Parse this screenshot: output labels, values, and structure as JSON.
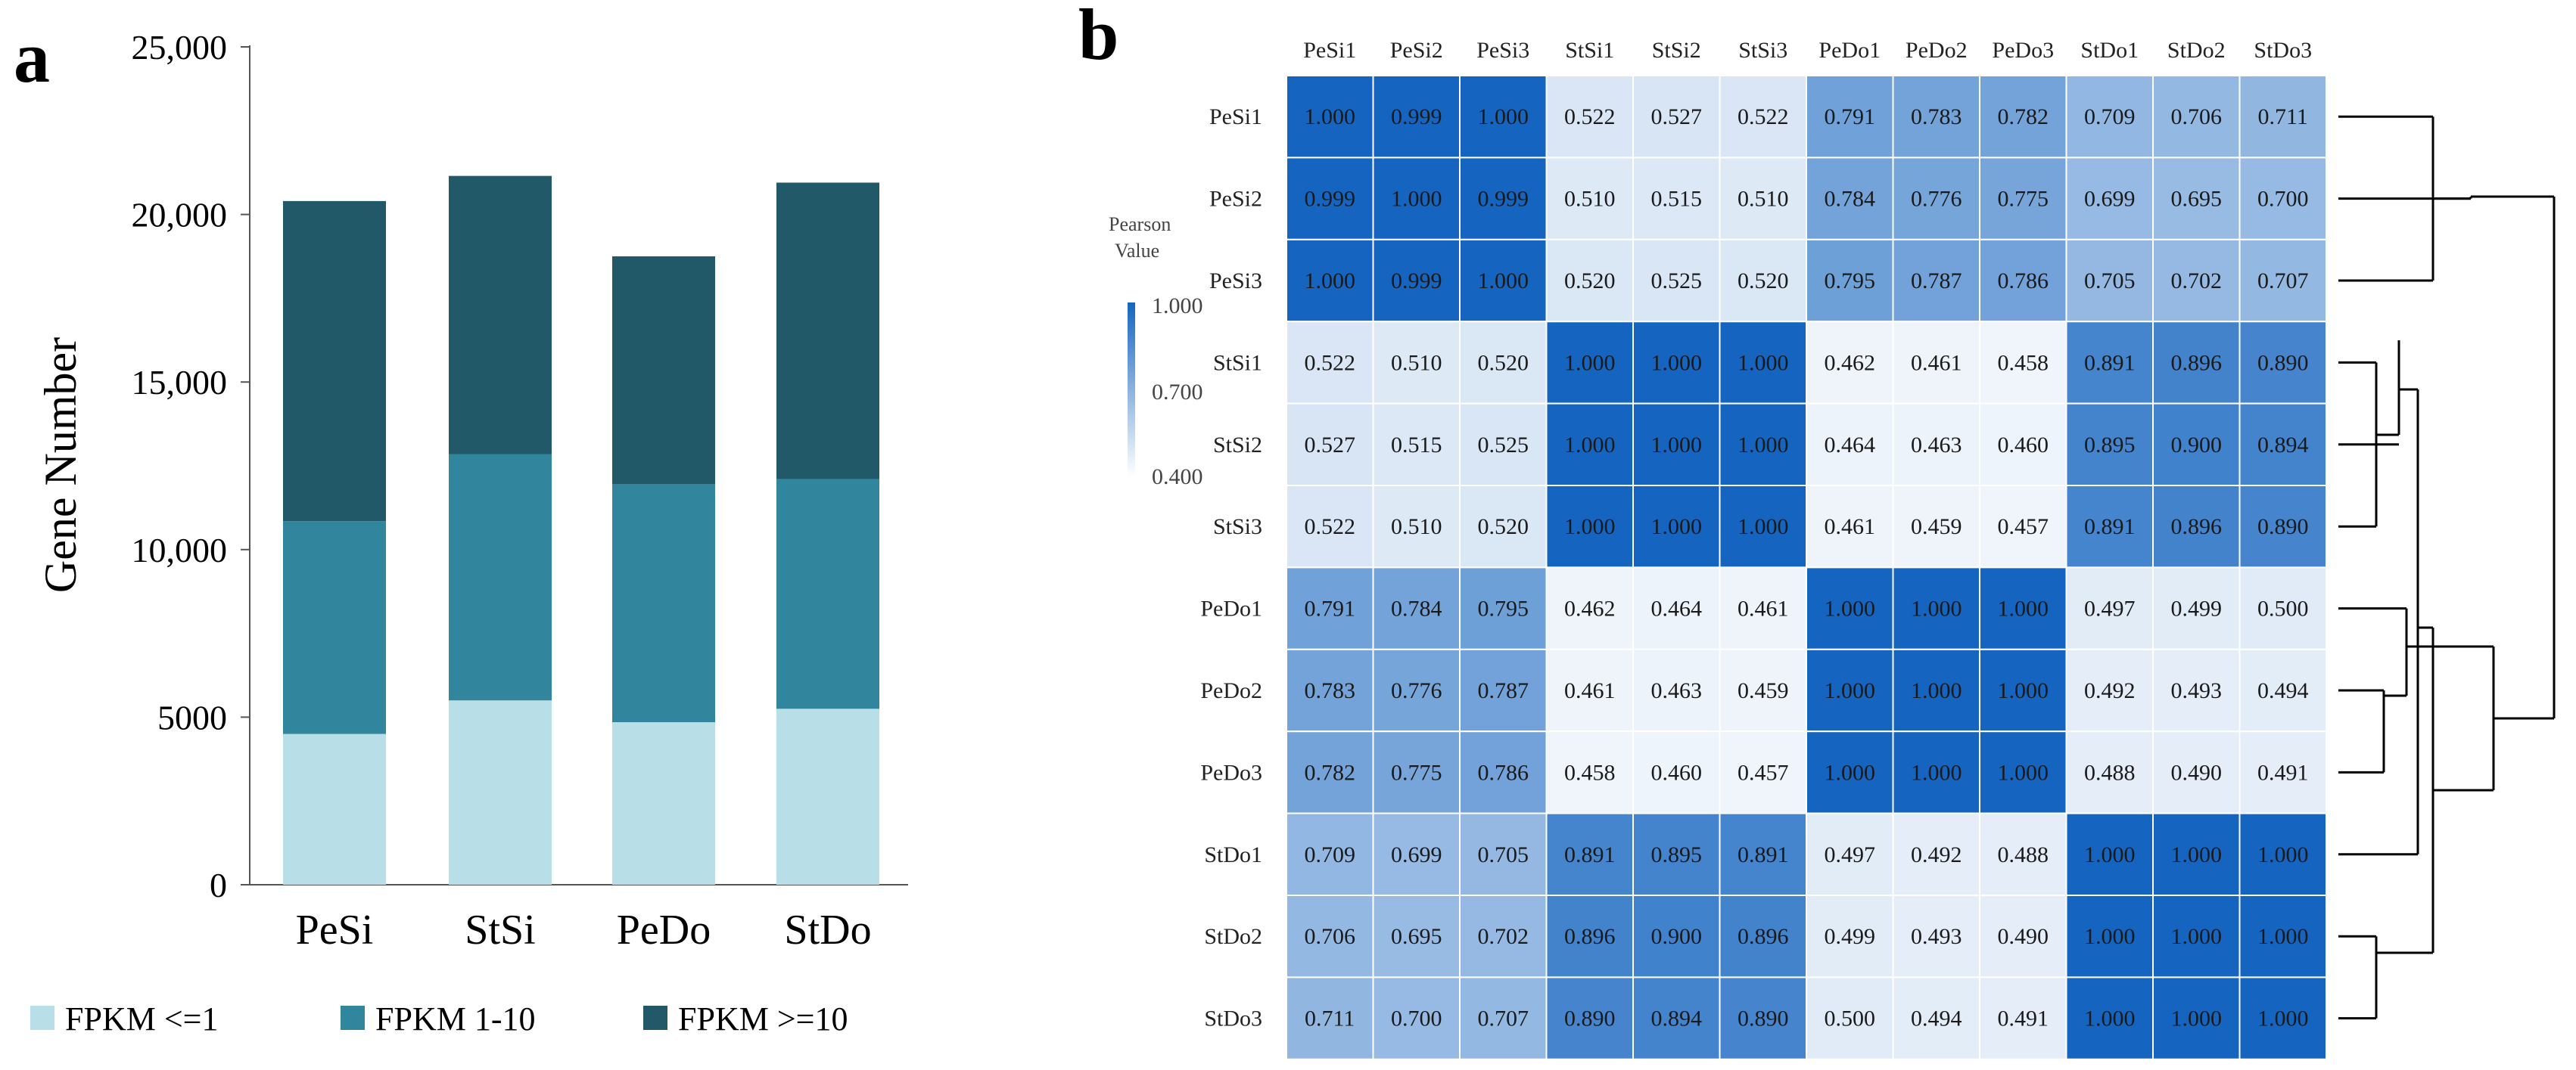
{
  "panels": {
    "a": "a",
    "b": "b"
  },
  "chart_data": [
    {
      "type": "bar",
      "stacked": true,
      "panel": "a",
      "title": "",
      "xlabel": "",
      "ylabel": "Gene Number",
      "ylim": [
        0,
        25000
      ],
      "yticks": [
        0,
        5000,
        10000,
        15000,
        20000,
        25000
      ],
      "ytick_labels": [
        "0",
        "5000",
        "10,000",
        "15,000",
        "20,000",
        "25,000"
      ],
      "categories": [
        "PeSi",
        "StSi",
        "PeDo",
        "StDo"
      ],
      "series": [
        {
          "name": "FPKM <=1",
          "color": "#b8dfe8",
          "values": [
            4500,
            5500,
            4850,
            5250
          ]
        },
        {
          "name": "FPKM 1-10",
          "color": "#31859c",
          "values": [
            6350,
            7350,
            7100,
            6850
          ]
        },
        {
          "name": "FPKM >=10",
          "color": "#215968",
          "values": [
            9550,
            8300,
            6800,
            8850
          ]
        }
      ],
      "legend_position": "bottom"
    },
    {
      "type": "heatmap",
      "panel": "b",
      "labels": [
        "PeSi1",
        "PeSi2",
        "PeSi3",
        "StSi1",
        "StSi2",
        "StSi3",
        "PeDo1",
        "PeDo2",
        "PeDo3",
        "StDo1",
        "StDo2",
        "StDo3"
      ],
      "values": [
        [
          "1.000",
          "0.999",
          "1.000",
          "0.522",
          "0.527",
          "0.522",
          "0.791",
          "0.783",
          "0.782",
          "0.709",
          "0.706",
          "0.711"
        ],
        [
          "0.999",
          "1.000",
          "0.999",
          "0.510",
          "0.515",
          "0.510",
          "0.784",
          "0.776",
          "0.775",
          "0.699",
          "0.695",
          "0.700"
        ],
        [
          "1.000",
          "0.999",
          "1.000",
          "0.520",
          "0.525",
          "0.520",
          "0.795",
          "0.787",
          "0.786",
          "0.705",
          "0.702",
          "0.707"
        ],
        [
          "0.522",
          "0.510",
          "0.520",
          "1.000",
          "1.000",
          "1.000",
          "0.462",
          "0.461",
          "0.458",
          "0.891",
          "0.896",
          "0.890"
        ],
        [
          "0.527",
          "0.515",
          "0.525",
          "1.000",
          "1.000",
          "1.000",
          "0.464",
          "0.463",
          "0.460",
          "0.895",
          "0.900",
          "0.894"
        ],
        [
          "0.522",
          "0.510",
          "0.520",
          "1.000",
          "1.000",
          "1.000",
          "0.461",
          "0.459",
          "0.457",
          "0.891",
          "0.896",
          "0.890"
        ],
        [
          "0.791",
          "0.784",
          "0.795",
          "0.462",
          "0.464",
          "0.461",
          "1.000",
          "1.000",
          "1.000",
          "0.497",
          "0.499",
          "0.500"
        ],
        [
          "0.783",
          "0.776",
          "0.787",
          "0.461",
          "0.463",
          "0.459",
          "1.000",
          "1.000",
          "1.000",
          "0.492",
          "0.493",
          "0.494"
        ],
        [
          "0.782",
          "0.775",
          "0.786",
          "0.458",
          "0.460",
          "0.457",
          "1.000",
          "1.000",
          "1.000",
          "0.488",
          "0.490",
          "0.491"
        ],
        [
          "0.709",
          "0.699",
          "0.705",
          "0.891",
          "0.895",
          "0.891",
          "0.497",
          "0.492",
          "0.488",
          "1.000",
          "1.000",
          "1.000"
        ],
        [
          "0.706",
          "0.695",
          "0.702",
          "0.896",
          "0.900",
          "0.896",
          "0.499",
          "0.493",
          "0.490",
          "1.000",
          "1.000",
          "1.000"
        ],
        [
          "0.711",
          "0.700",
          "0.707",
          "0.890",
          "0.894",
          "0.890",
          "0.500",
          "0.494",
          "0.491",
          "1.000",
          "1.000",
          "1.000"
        ]
      ],
      "colorbar": {
        "title_line1": "Pearson",
        "title_line2": "Value",
        "min": 0.4,
        "max": 1.0,
        "tick_labels": [
          "1.000",
          "0.700",
          "0.400"
        ],
        "color_low": "#ffffff",
        "color_high": "#1565c0"
      },
      "dendrogram": "row clustering: ((PeSi1,PeSi3),PeSi2), (((StSi1,StSi3),StSi2),StDo1,(StDo2,StDo3)), ((PeDo2,PeDo3),PeDo1)"
    }
  ]
}
